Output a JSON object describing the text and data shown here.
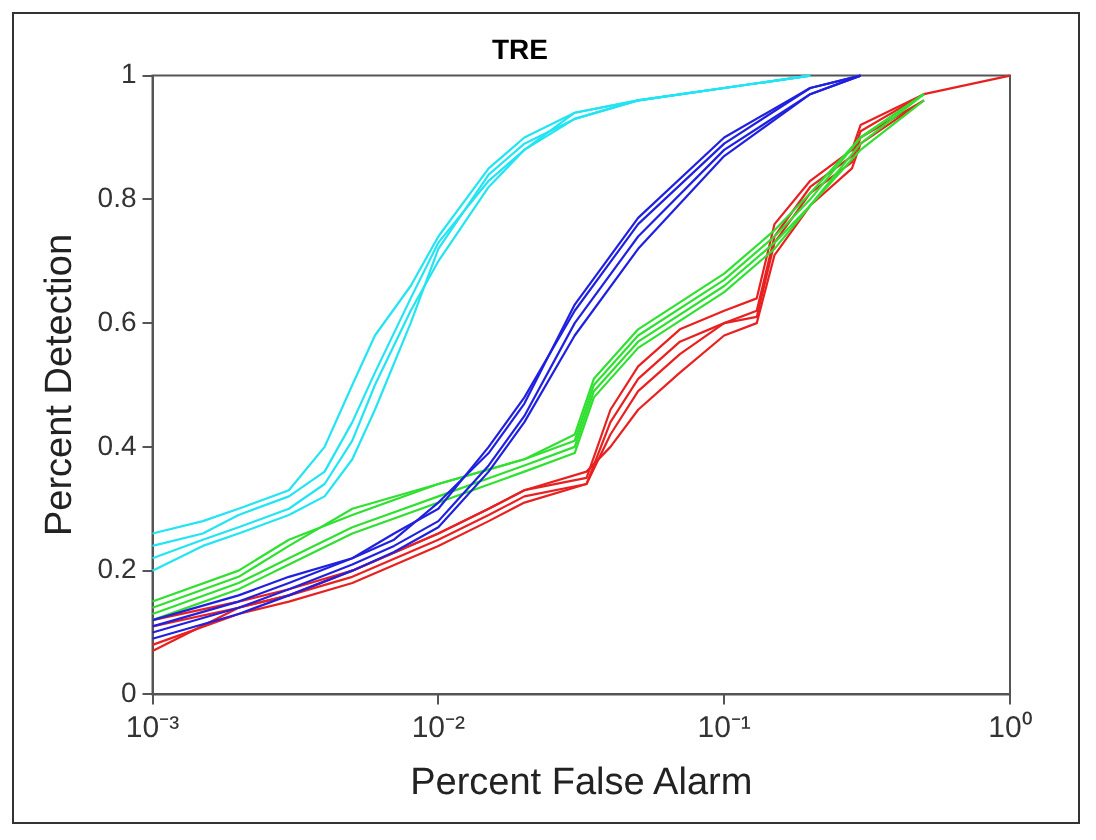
{
  "chart_data": {
    "type": "line",
    "title": "TRE",
    "xlabel": "Percent False Alarm",
    "ylabel": "Percent Detection",
    "log": "x",
    "xlim": [
      0.001,
      1
    ],
    "xticks": [
      {
        "value": 0.001,
        "label": "10⁻³"
      },
      {
        "value": 0.01,
        "label": "10⁻²"
      },
      {
        "value": 0.1,
        "label": "10⁻¹"
      },
      {
        "value": 1,
        "label": "10⁰"
      }
    ],
    "ylim": [
      0,
      1
    ],
    "yticks": [
      0,
      0.2,
      0.4,
      0.6,
      0.8,
      1
    ],
    "grid": false,
    "legend": false,
    "marker": "none",
    "line_style": "solid",
    "series": [
      {
        "color": "#22e4f2",
        "x": [
          0.001,
          0.0015,
          0.002,
          0.003,
          0.004,
          0.005,
          0.006,
          0.008,
          0.01,
          0.015,
          0.02,
          0.03,
          0.05,
          0.1,
          0.2
        ],
        "values": [
          0.26,
          0.28,
          0.3,
          0.33,
          0.4,
          0.5,
          0.58,
          0.66,
          0.74,
          0.85,
          0.9,
          0.94,
          0.96,
          0.98,
          1
        ]
      },
      {
        "color": "#22e4f2",
        "x": [
          0.001,
          0.0015,
          0.002,
          0.003,
          0.004,
          0.005,
          0.006,
          0.008,
          0.01,
          0.015,
          0.02,
          0.03,
          0.05,
          0.1,
          0.2
        ],
        "values": [
          0.22,
          0.25,
          0.27,
          0.3,
          0.34,
          0.41,
          0.5,
          0.62,
          0.7,
          0.82,
          0.88,
          0.93,
          0.96,
          0.98,
          1
        ]
      },
      {
        "color": "#22e4f2",
        "x": [
          0.001,
          0.0015,
          0.002,
          0.003,
          0.004,
          0.005,
          0.006,
          0.008,
          0.01,
          0.015,
          0.02,
          0.03,
          0.05,
          0.1,
          0.2
        ],
        "values": [
          0.2,
          0.24,
          0.26,
          0.29,
          0.32,
          0.38,
          0.46,
          0.6,
          0.72,
          0.84,
          0.89,
          0.93,
          0.96,
          0.98,
          1
        ]
      },
      {
        "color": "#22e4f2",
        "x": [
          0.001,
          0.0015,
          0.002,
          0.003,
          0.004,
          0.005,
          0.006,
          0.008,
          0.01,
          0.015,
          0.02,
          0.03,
          0.05,
          0.1,
          0.2
        ],
        "values": [
          0.24,
          0.26,
          0.29,
          0.32,
          0.36,
          0.44,
          0.52,
          0.64,
          0.73,
          0.83,
          0.88,
          0.94,
          0.96,
          0.98,
          1
        ]
      },
      {
        "color": "#2020e0",
        "x": [
          0.001,
          0.002,
          0.003,
          0.005,
          0.007,
          0.01,
          0.015,
          0.02,
          0.03,
          0.05,
          0.1,
          0.2,
          0.3
        ],
        "values": [
          0.12,
          0.16,
          0.19,
          0.22,
          0.26,
          0.3,
          0.4,
          0.48,
          0.62,
          0.76,
          0.89,
          0.98,
          1
        ]
      },
      {
        "color": "#2020e0",
        "x": [
          0.001,
          0.002,
          0.003,
          0.005,
          0.007,
          0.01,
          0.015,
          0.02,
          0.03,
          0.05,
          0.1,
          0.2,
          0.3
        ],
        "values": [
          0.1,
          0.14,
          0.17,
          0.21,
          0.24,
          0.28,
          0.37,
          0.45,
          0.6,
          0.74,
          0.88,
          0.97,
          1
        ]
      },
      {
        "color": "#2020e0",
        "x": [
          0.001,
          0.002,
          0.003,
          0.005,
          0.007,
          0.01,
          0.015,
          0.02,
          0.03,
          0.05,
          0.1,
          0.2,
          0.3
        ],
        "values": [
          0.11,
          0.15,
          0.18,
          0.22,
          0.25,
          0.31,
          0.39,
          0.47,
          0.63,
          0.77,
          0.9,
          0.98,
          1
        ]
      },
      {
        "color": "#2020e0",
        "x": [
          0.001,
          0.002,
          0.003,
          0.005,
          0.007,
          0.01,
          0.015,
          0.02,
          0.03,
          0.05,
          0.1,
          0.2,
          0.3
        ],
        "values": [
          0.09,
          0.13,
          0.16,
          0.2,
          0.23,
          0.27,
          0.36,
          0.44,
          0.58,
          0.72,
          0.87,
          0.97,
          1
        ]
      },
      {
        "color": "#30e030",
        "x": [
          0.001,
          0.002,
          0.003,
          0.005,
          0.01,
          0.02,
          0.03,
          0.035,
          0.05,
          0.1,
          0.15,
          0.2,
          0.3,
          0.5
        ],
        "values": [
          0.15,
          0.2,
          0.25,
          0.29,
          0.34,
          0.38,
          0.41,
          0.5,
          0.58,
          0.67,
          0.74,
          0.8,
          0.9,
          0.97
        ]
      },
      {
        "color": "#30e030",
        "x": [
          0.001,
          0.002,
          0.003,
          0.005,
          0.01,
          0.02,
          0.03,
          0.035,
          0.05,
          0.1,
          0.15,
          0.2,
          0.3,
          0.5
        ],
        "values": [
          0.13,
          0.18,
          0.22,
          0.27,
          0.32,
          0.37,
          0.4,
          0.49,
          0.57,
          0.66,
          0.73,
          0.79,
          0.89,
          0.97
        ]
      },
      {
        "color": "#30e030",
        "x": [
          0.001,
          0.002,
          0.003,
          0.005,
          0.01,
          0.02,
          0.03,
          0.035,
          0.05,
          0.1,
          0.15,
          0.2,
          0.3,
          0.5
        ],
        "values": [
          0.14,
          0.19,
          0.24,
          0.3,
          0.34,
          0.38,
          0.42,
          0.51,
          0.59,
          0.68,
          0.75,
          0.81,
          0.9,
          0.97
        ]
      },
      {
        "color": "#30e030",
        "x": [
          0.001,
          0.002,
          0.003,
          0.005,
          0.01,
          0.02,
          0.03,
          0.035,
          0.05,
          0.1,
          0.15,
          0.2,
          0.3,
          0.5
        ],
        "values": [
          0.12,
          0.17,
          0.21,
          0.26,
          0.31,
          0.36,
          0.39,
          0.48,
          0.56,
          0.65,
          0.72,
          0.79,
          0.88,
          0.96
        ]
      },
      {
        "color": "#e82020",
        "x": [
          0.001,
          0.002,
          0.003,
          0.005,
          0.01,
          0.015,
          0.02,
          0.033,
          0.04,
          0.05,
          0.07,
          0.1,
          0.13,
          0.15,
          0.2,
          0.28,
          0.3,
          0.5,
          1
        ],
        "values": [
          0.12,
          0.15,
          0.17,
          0.2,
          0.26,
          0.3,
          0.33,
          0.35,
          0.46,
          0.53,
          0.59,
          0.62,
          0.64,
          0.76,
          0.83,
          0.88,
          0.92,
          0.97,
          1
        ]
      },
      {
        "color": "#e82020",
        "x": [
          0.001,
          0.002,
          0.003,
          0.005,
          0.01,
          0.015,
          0.02,
          0.033,
          0.04,
          0.05,
          0.07,
          0.1,
          0.13,
          0.15,
          0.2,
          0.28,
          0.3,
          0.5
        ],
        "values": [
          0.07,
          0.14,
          0.16,
          0.19,
          0.25,
          0.29,
          0.32,
          0.34,
          0.44,
          0.51,
          0.57,
          0.6,
          0.62,
          0.74,
          0.82,
          0.87,
          0.91,
          0.97
        ]
      },
      {
        "color": "#e82020",
        "x": [
          0.001,
          0.002,
          0.003,
          0.005,
          0.01,
          0.015,
          0.02,
          0.033,
          0.04,
          0.05,
          0.07,
          0.1,
          0.13,
          0.15,
          0.2,
          0.28,
          0.3,
          0.5
        ],
        "values": [
          0.08,
          0.13,
          0.15,
          0.18,
          0.24,
          0.28,
          0.31,
          0.34,
          0.42,
          0.49,
          0.55,
          0.6,
          0.61,
          0.73,
          0.81,
          0.86,
          0.9,
          0.96
        ]
      },
      {
        "color": "#e82020",
        "x": [
          0.001,
          0.002,
          0.003,
          0.005,
          0.01,
          0.015,
          0.02,
          0.033,
          0.04,
          0.05,
          0.07,
          0.1,
          0.13,
          0.15,
          0.2,
          0.28,
          0.3,
          0.5
        ],
        "values": [
          0.11,
          0.14,
          0.16,
          0.2,
          0.26,
          0.3,
          0.33,
          0.36,
          0.4,
          0.46,
          0.52,
          0.58,
          0.6,
          0.71,
          0.79,
          0.85,
          0.89,
          0.96
        ]
      }
    ]
  }
}
